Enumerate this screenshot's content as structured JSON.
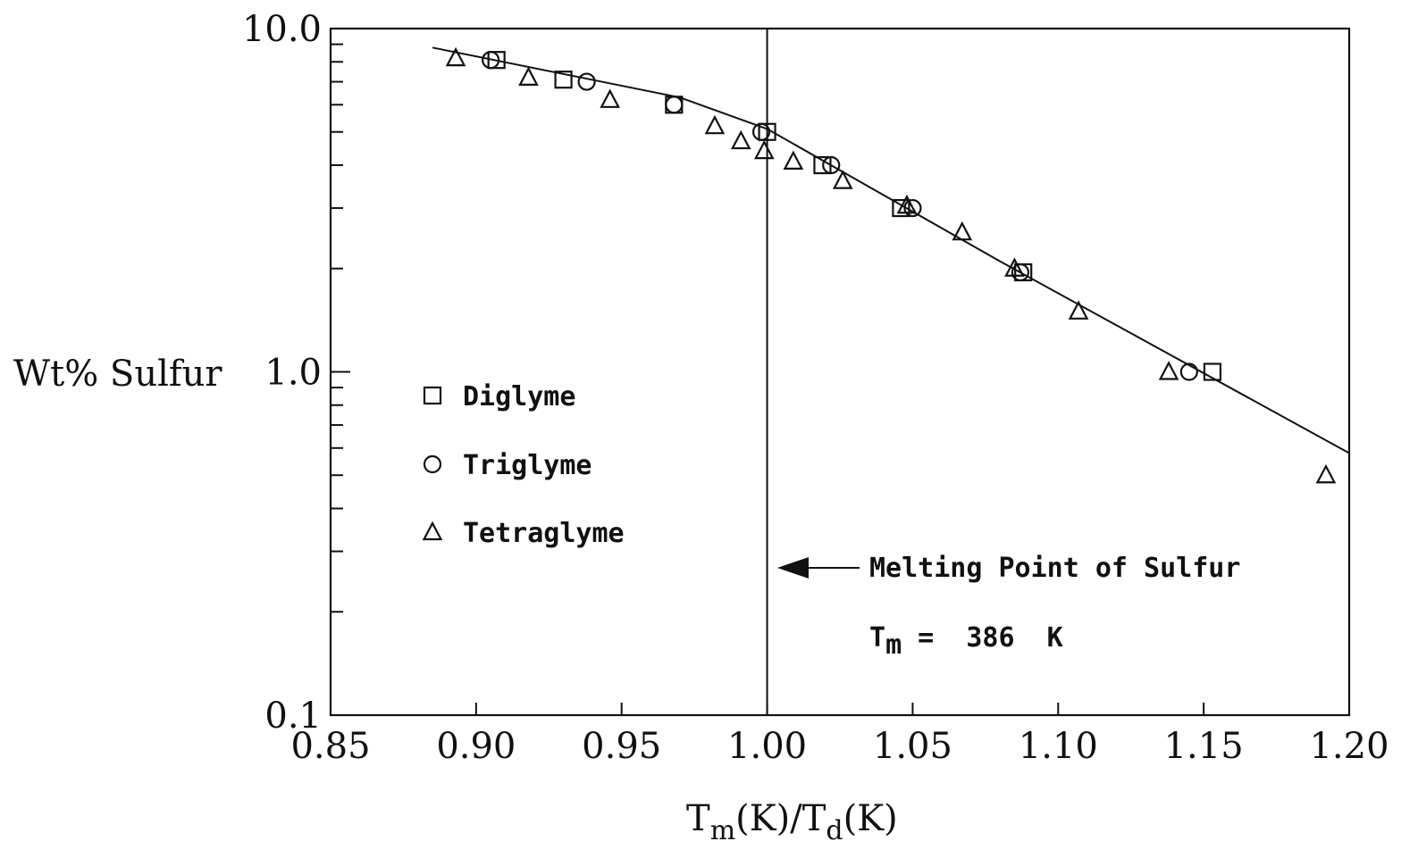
{
  "chart_data": {
    "type": "scatter",
    "xlabel": {
      "t1": "T",
      "s1": "m",
      "mid": "(K)/T",
      "s2": "d",
      "end": "(K)"
    },
    "ylabel": "Wt% Sulfur",
    "xlim": [
      0.85,
      1.2
    ],
    "ylim": [
      0.1,
      10.0
    ],
    "yscale": "log",
    "grid": false,
    "legend_position": "left-center",
    "x_ticks": [
      "0.85",
      "0.90",
      "0.95",
      "1.00",
      "1.05",
      "1.10",
      "1.15",
      "1.20"
    ],
    "y_tick_labels": [
      {
        "value": 0.1,
        "label": "0.1"
      },
      {
        "value": 1.0,
        "label": "1.0"
      },
      {
        "value": 10.0,
        "label": "10.0"
      }
    ],
    "series": [
      {
        "name": "Diglyme",
        "marker": "square",
        "x": [
          0.907,
          0.93,
          0.968,
          1.0,
          1.019,
          1.046,
          1.088,
          1.153
        ],
        "y": [
          8.1,
          7.1,
          6.0,
          5.0,
          4.0,
          3.0,
          1.95,
          1.0
        ]
      },
      {
        "name": "Triglyme",
        "marker": "circle",
        "x": [
          0.905,
          0.938,
          0.968,
          0.998,
          1.022,
          1.05,
          1.087,
          1.145
        ],
        "y": [
          8.1,
          7.0,
          6.0,
          5.0,
          4.0,
          3.0,
          1.95,
          1.0
        ]
      },
      {
        "name": "Tetraglyme",
        "marker": "triangle",
        "x": [
          0.893,
          0.918,
          0.946,
          0.982,
          0.991,
          0.999,
          1.009,
          1.026,
          1.048,
          1.067,
          1.085,
          1.107,
          1.138,
          1.192
        ],
        "y": [
          8.2,
          7.2,
          6.2,
          5.2,
          4.7,
          4.4,
          4.1,
          3.6,
          3.05,
          2.55,
          2.0,
          1.5,
          1.0,
          0.5
        ]
      }
    ],
    "fit_line": [
      {
        "x": 0.885,
        "y": 8.8
      },
      {
        "x": 0.97,
        "y": 6.3
      },
      {
        "x": 1.0,
        "y": 5.1
      },
      {
        "x": 1.08,
        "y": 2.1
      },
      {
        "x": 1.2,
        "y": 0.58
      }
    ],
    "reference_line_x": 1.0,
    "annotation": {
      "text": "Melting Point of Sulfur",
      "formula_t": "T",
      "formula_sub": "m",
      "formula_rest": " =  386  K"
    }
  }
}
